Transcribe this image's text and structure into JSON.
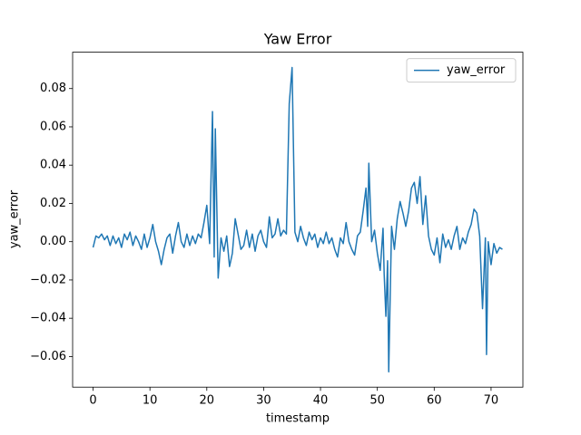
{
  "chart_data": {
    "type": "line",
    "title": "Yaw Error",
    "xlabel": "timestamp",
    "ylabel": "yaw_error",
    "x": [
      0,
      0.5,
      1,
      1.5,
      2,
      2.5,
      3,
      3.5,
      4,
      4.5,
      5,
      5.5,
      6,
      6.5,
      7,
      7.5,
      8,
      8.5,
      9,
      9.5,
      10,
      10.5,
      11,
      11.5,
      12,
      12.5,
      13,
      13.5,
      14,
      14.5,
      15,
      15.5,
      16,
      16.5,
      17,
      17.5,
      18,
      18.5,
      19,
      19.5,
      20,
      20.5,
      21,
      21.3,
      21.5,
      22,
      22.5,
      23,
      23.5,
      24,
      24.5,
      25,
      25.5,
      26,
      26.5,
      27,
      27.5,
      28,
      28.5,
      29,
      29.5,
      30,
      30.5,
      31,
      31.5,
      32,
      32.5,
      33,
      33.5,
      34,
      34.5,
      35,
      35.5,
      36,
      36.5,
      37,
      37.5,
      38,
      38.5,
      39,
      39.5,
      40,
      40.5,
      41,
      41.5,
      42,
      42.5,
      43,
      43.5,
      44,
      44.5,
      45,
      45.5,
      46,
      46.5,
      47,
      47.5,
      48,
      48.3,
      48.5,
      49,
      49.5,
      50,
      50.5,
      51,
      51.2,
      51.5,
      51.8,
      52,
      52.5,
      53,
      53.5,
      54,
      54.5,
      55,
      55.5,
      56,
      56.5,
      57,
      57.5,
      58,
      58.5,
      59,
      59.5,
      60,
      60.5,
      61,
      61.5,
      62,
      62.5,
      63,
      63.5,
      64,
      64.5,
      65,
      65.5,
      66,
      66.5,
      67,
      67.5,
      68,
      68.5,
      69,
      69.2,
      69.5,
      70,
      70.5,
      71,
      71.5,
      72
    ],
    "series": [
      {
        "name": "yaw_error",
        "color": "#1f77b4",
        "values": [
          -0.003,
          0.003,
          0.002,
          0.004,
          0.001,
          0.003,
          -0.002,
          0.003,
          -0.001,
          0.002,
          -0.003,
          0.004,
          0.001,
          0.005,
          -0.002,
          0.003,
          0.0,
          -0.004,
          0.004,
          -0.003,
          0.002,
          0.009,
          0.0,
          -0.005,
          -0.012,
          -0.004,
          0.002,
          0.004,
          -0.006,
          0.003,
          0.01,
          0.0,
          -0.003,
          0.004,
          -0.002,
          0.003,
          -0.001,
          0.004,
          0.002,
          0.01,
          0.019,
          -0.001,
          0.068,
          -0.008,
          0.059,
          -0.019,
          0.002,
          -0.005,
          0.003,
          -0.013,
          -0.006,
          0.012,
          0.004,
          -0.004,
          -0.002,
          0.006,
          -0.003,
          0.004,
          -0.005,
          0.003,
          0.006,
          0.0,
          -0.003,
          0.013,
          0.002,
          0.004,
          0.012,
          0.003,
          0.006,
          0.004,
          0.072,
          0.091,
          0.005,
          0.0,
          0.008,
          0.002,
          -0.002,
          0.005,
          0.001,
          0.004,
          -0.003,
          0.002,
          -0.001,
          0.005,
          -0.001,
          0.002,
          -0.004,
          -0.008,
          0.002,
          -0.001,
          0.01,
          0.0,
          -0.004,
          -0.007,
          0.003,
          0.005,
          0.016,
          0.028,
          0.008,
          0.041,
          0.0,
          0.006,
          -0.006,
          -0.015,
          0.007,
          -0.017,
          -0.039,
          -0.01,
          -0.068,
          0.008,
          -0.004,
          0.012,
          0.021,
          0.015,
          0.008,
          0.016,
          0.028,
          0.031,
          0.02,
          0.034,
          0.009,
          0.024,
          0.003,
          -0.004,
          -0.007,
          0.002,
          -0.011,
          0.004,
          -0.003,
          0.001,
          -0.004,
          0.003,
          0.008,
          -0.004,
          0.002,
          -0.001,
          0.005,
          0.009,
          0.017,
          0.015,
          0.003,
          -0.035,
          0.002,
          -0.059,
          0.0,
          -0.012,
          -0.001,
          -0.006,
          -0.003,
          -0.004
        ]
      }
    ],
    "xlim": [
      -3.6,
      75.6
    ],
    "ylim": [
      -0.076,
      0.099
    ],
    "xticks": [
      0,
      10,
      20,
      30,
      40,
      50,
      60,
      70
    ],
    "yticks": [
      {
        "value": -0.06,
        "label": "−0.06"
      },
      {
        "value": -0.04,
        "label": "−0.04"
      },
      {
        "value": -0.02,
        "label": "−0.02"
      },
      {
        "value": 0,
        "label": "0.00"
      },
      {
        "value": 0.02,
        "label": "0.02"
      },
      {
        "value": 0.04,
        "label": "0.04"
      },
      {
        "value": 0.06,
        "label": "0.06"
      },
      {
        "value": 0.08,
        "label": "0.08"
      }
    ],
    "legend": "upper right"
  }
}
